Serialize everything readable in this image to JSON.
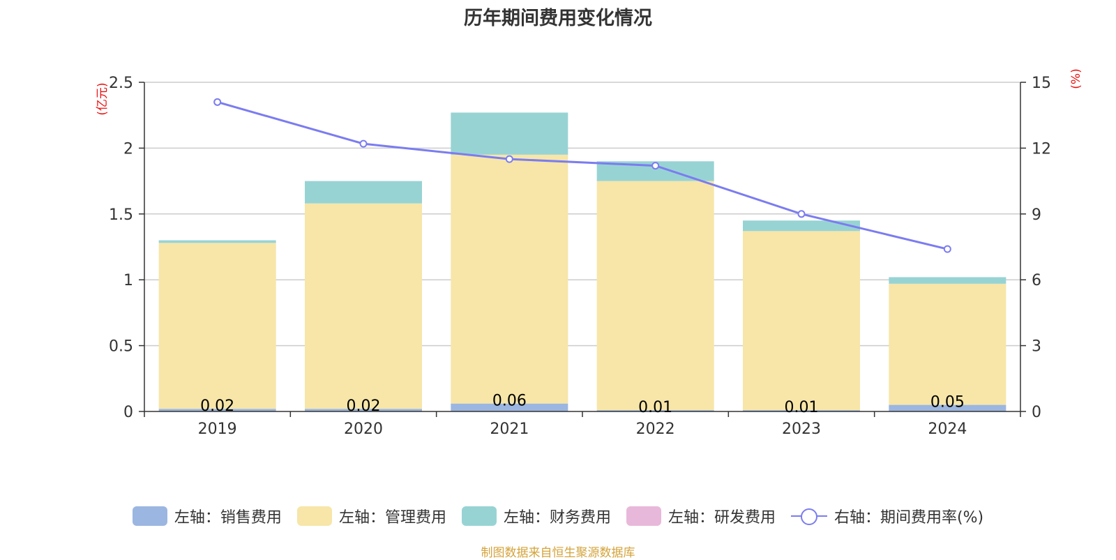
{
  "title": "历年期间费用变化情况",
  "source": "制图数据来自恒生聚源数据库",
  "colors": {
    "sales": "#9bb6e0",
    "admin": "#f7e6a8",
    "finance": "#98d3d4",
    "rnd": "#e8b8da",
    "rate": "#7b7cf0",
    "unit": "#e8110f",
    "source": "#d4a33a"
  },
  "chart_data": {
    "type": "bar",
    "stacked": true,
    "title": "历年期间费用变化情况",
    "categories": [
      "2019",
      "2020",
      "2021",
      "2022",
      "2023",
      "2024"
    ],
    "y_left": {
      "unit": "(亿元)",
      "ylim": [
        0,
        2.5
      ],
      "ticks": [
        "0",
        "0.5",
        "1",
        "1.5",
        "2",
        "2.5"
      ]
    },
    "y_right": {
      "unit": "(%)",
      "ylim": [
        0,
        15
      ],
      "ticks": [
        "0",
        "3",
        "6",
        "9",
        "12",
        "15"
      ]
    },
    "series": [
      {
        "name": "左轴：销售费用",
        "axis": "left",
        "values": [
          0.02,
          0.02,
          0.06,
          0.01,
          0.01,
          0.05
        ],
        "labels": [
          "0.02",
          "0.02",
          "0.06",
          "0.01",
          "0.01",
          "0.05"
        ]
      },
      {
        "name": "左轴：管理费用",
        "axis": "left",
        "values": [
          1.26,
          1.56,
          1.89,
          1.74,
          1.36,
          0.92
        ]
      },
      {
        "name": "左轴：财务费用",
        "axis": "left",
        "values": [
          0.02,
          0.17,
          0.32,
          0.15,
          0.08,
          0.05
        ]
      },
      {
        "name": "左轴：研发费用",
        "axis": "left",
        "values": [
          0,
          0,
          0,
          0,
          0,
          0
        ]
      },
      {
        "name": "右轴：期间费用率(%)",
        "axis": "right",
        "type": "line",
        "values": [
          14.1,
          12.2,
          11.5,
          11.2,
          9.0,
          7.4
        ]
      }
    ],
    "grid": true,
    "legend": "bottom"
  }
}
